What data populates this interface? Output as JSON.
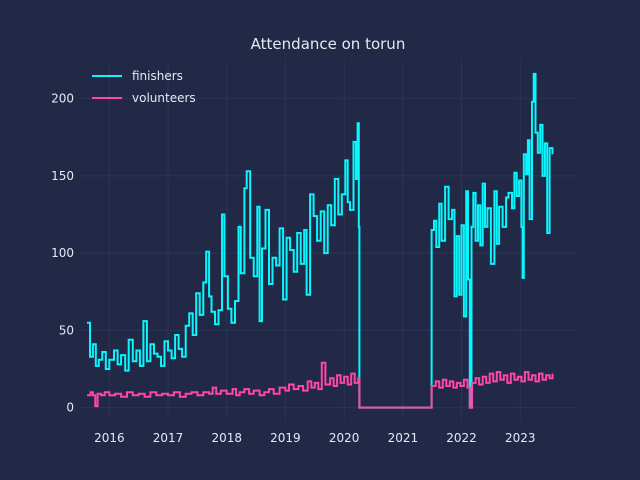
{
  "chart_data": {
    "type": "line",
    "title": "Attendance on torun",
    "xlabel": "",
    "ylabel": "",
    "x_ticks": [
      "2016",
      "2017",
      "2018",
      "2019",
      "2020",
      "2021",
      "2022",
      "2023"
    ],
    "y_ticks": [
      "0",
      "50",
      "100",
      "150",
      "200"
    ],
    "xlim": [
      2015.5,
      2023.95
    ],
    "ylim": [
      -8,
      225
    ],
    "grid": true,
    "legend_position": "top-left",
    "series": [
      {
        "name": "finishers",
        "color": "#08f7fe",
        "points": [
          [
            2015.62,
            55
          ],
          [
            2015.67,
            33
          ],
          [
            2015.72,
            41
          ],
          [
            2015.77,
            27
          ],
          [
            2015.82,
            31
          ],
          [
            2015.88,
            36
          ],
          [
            2015.94,
            25
          ],
          [
            2016.0,
            31
          ],
          [
            2016.08,
            37
          ],
          [
            2016.14,
            28
          ],
          [
            2016.2,
            34
          ],
          [
            2016.27,
            24
          ],
          [
            2016.33,
            44
          ],
          [
            2016.4,
            30
          ],
          [
            2016.46,
            37
          ],
          [
            2016.52,
            27
          ],
          [
            2016.58,
            56
          ],
          [
            2016.64,
            30
          ],
          [
            2016.7,
            41
          ],
          [
            2016.76,
            35
          ],
          [
            2016.82,
            33
          ],
          [
            2016.88,
            27
          ],
          [
            2016.94,
            43
          ],
          [
            2017.0,
            37
          ],
          [
            2017.06,
            32
          ],
          [
            2017.12,
            47
          ],
          [
            2017.18,
            38
          ],
          [
            2017.24,
            33
          ],
          [
            2017.3,
            53
          ],
          [
            2017.36,
            61
          ],
          [
            2017.42,
            47
          ],
          [
            2017.48,
            74
          ],
          [
            2017.54,
            60
          ],
          [
            2017.6,
            81
          ],
          [
            2017.65,
            101
          ],
          [
            2017.7,
            72
          ],
          [
            2017.74,
            62
          ],
          [
            2017.8,
            54
          ],
          [
            2017.86,
            63
          ],
          [
            2017.92,
            125
          ],
          [
            2017.96,
            85
          ],
          [
            2018.02,
            64
          ],
          [
            2018.08,
            55
          ],
          [
            2018.14,
            69
          ],
          [
            2018.2,
            117
          ],
          [
            2018.24,
            87
          ],
          [
            2018.3,
            142
          ],
          [
            2018.34,
            153
          ],
          [
            2018.4,
            97
          ],
          [
            2018.46,
            85
          ],
          [
            2018.52,
            130
          ],
          [
            2018.56,
            56
          ],
          [
            2018.6,
            103
          ],
          [
            2018.66,
            128
          ],
          [
            2018.72,
            80
          ],
          [
            2018.78,
            97
          ],
          [
            2018.84,
            92
          ],
          [
            2018.9,
            116
          ],
          [
            2018.96,
            70
          ],
          [
            2019.02,
            110
          ],
          [
            2019.08,
            102
          ],
          [
            2019.14,
            88
          ],
          [
            2019.2,
            113
          ],
          [
            2019.26,
            93
          ],
          [
            2019.32,
            115
          ],
          [
            2019.36,
            73
          ],
          [
            2019.42,
            138
          ],
          [
            2019.48,
            124
          ],
          [
            2019.54,
            108
          ],
          [
            2019.6,
            127
          ],
          [
            2019.66,
            100
          ],
          [
            2019.72,
            131
          ],
          [
            2019.78,
            118
          ],
          [
            2019.84,
            148
          ],
          [
            2019.9,
            125
          ],
          [
            2019.96,
            138
          ],
          [
            2020.02,
            160
          ],
          [
            2020.06,
            133
          ],
          [
            2020.1,
            128
          ],
          [
            2020.16,
            172
          ],
          [
            2020.2,
            148
          ],
          [
            2020.23,
            184
          ],
          [
            2020.25,
            117
          ],
          [
            2020.26,
            0
          ],
          [
            2021.48,
            0
          ],
          [
            2021.49,
            115
          ],
          [
            2021.53,
            121
          ],
          [
            2021.57,
            104
          ],
          [
            2021.62,
            132
          ],
          [
            2021.66,
            108
          ],
          [
            2021.72,
            143
          ],
          [
            2021.78,
            122
          ],
          [
            2021.84,
            128
          ],
          [
            2021.88,
            72
          ],
          [
            2021.92,
            111
          ],
          [
            2021.96,
            73
          ],
          [
            2022.0,
            118
          ],
          [
            2022.04,
            59
          ],
          [
            2022.08,
            140
          ],
          [
            2022.11,
            83
          ],
          [
            2022.14,
            0
          ],
          [
            2022.17,
            117
          ],
          [
            2022.2,
            139
          ],
          [
            2022.24,
            108
          ],
          [
            2022.28,
            131
          ],
          [
            2022.32,
            105
          ],
          [
            2022.36,
            145
          ],
          [
            2022.4,
            117
          ],
          [
            2022.44,
            129
          ],
          [
            2022.5,
            93
          ],
          [
            2022.56,
            140
          ],
          [
            2022.6,
            106
          ],
          [
            2022.64,
            130
          ],
          [
            2022.7,
            117
          ],
          [
            2022.76,
            136
          ],
          [
            2022.8,
            139
          ],
          [
            2022.86,
            129
          ],
          [
            2022.9,
            152
          ],
          [
            2022.94,
            137
          ],
          [
            2022.98,
            147
          ],
          [
            2023.02,
            117
          ],
          [
            2023.04,
            84
          ],
          [
            2023.06,
            164
          ],
          [
            2023.1,
            151
          ],
          [
            2023.13,
            173
          ],
          [
            2023.16,
            122
          ],
          [
            2023.2,
            198
          ],
          [
            2023.23,
            216
          ],
          [
            2023.26,
            178
          ],
          [
            2023.3,
            165
          ],
          [
            2023.34,
            183
          ],
          [
            2023.38,
            150
          ],
          [
            2023.42,
            171
          ],
          [
            2023.46,
            113
          ],
          [
            2023.5,
            168
          ],
          [
            2023.55,
            164
          ]
        ]
      },
      {
        "name": "volunteers",
        "color": "#ff46a9",
        "points": [
          [
            2015.62,
            8
          ],
          [
            2015.68,
            10
          ],
          [
            2015.72,
            8
          ],
          [
            2015.76,
            1
          ],
          [
            2015.8,
            9
          ],
          [
            2015.86,
            8
          ],
          [
            2015.92,
            10
          ],
          [
            2016.0,
            8
          ],
          [
            2016.1,
            9
          ],
          [
            2016.2,
            7
          ],
          [
            2016.3,
            10
          ],
          [
            2016.4,
            8
          ],
          [
            2016.5,
            9
          ],
          [
            2016.6,
            7
          ],
          [
            2016.7,
            10
          ],
          [
            2016.8,
            8
          ],
          [
            2016.9,
            9
          ],
          [
            2017.0,
            8
          ],
          [
            2017.1,
            10
          ],
          [
            2017.2,
            7
          ],
          [
            2017.3,
            9
          ],
          [
            2017.4,
            10
          ],
          [
            2017.5,
            8
          ],
          [
            2017.6,
            10
          ],
          [
            2017.7,
            9
          ],
          [
            2017.76,
            13
          ],
          [
            2017.82,
            9
          ],
          [
            2017.9,
            11
          ],
          [
            2018.0,
            9
          ],
          [
            2018.1,
            12
          ],
          [
            2018.16,
            8
          ],
          [
            2018.22,
            10
          ],
          [
            2018.3,
            12
          ],
          [
            2018.38,
            9
          ],
          [
            2018.46,
            11
          ],
          [
            2018.56,
            8
          ],
          [
            2018.64,
            10
          ],
          [
            2018.72,
            12
          ],
          [
            2018.8,
            9
          ],
          [
            2018.9,
            13
          ],
          [
            2019.0,
            11
          ],
          [
            2019.06,
            15
          ],
          [
            2019.14,
            12
          ],
          [
            2019.22,
            14
          ],
          [
            2019.3,
            11
          ],
          [
            2019.38,
            17
          ],
          [
            2019.44,
            13
          ],
          [
            2019.5,
            16
          ],
          [
            2019.56,
            12
          ],
          [
            2019.62,
            29
          ],
          [
            2019.68,
            15
          ],
          [
            2019.76,
            19
          ],
          [
            2019.82,
            14
          ],
          [
            2019.88,
            21
          ],
          [
            2019.94,
            16
          ],
          [
            2020.0,
            20
          ],
          [
            2020.06,
            15
          ],
          [
            2020.12,
            22
          ],
          [
            2020.18,
            16
          ],
          [
            2020.24,
            19
          ],
          [
            2020.26,
            0
          ],
          [
            2021.48,
            0
          ],
          [
            2021.49,
            14
          ],
          [
            2021.56,
            17
          ],
          [
            2021.62,
            13
          ],
          [
            2021.68,
            18
          ],
          [
            2021.74,
            14
          ],
          [
            2021.8,
            17
          ],
          [
            2021.86,
            13
          ],
          [
            2021.92,
            16
          ],
          [
            2021.98,
            14
          ],
          [
            2022.04,
            18
          ],
          [
            2022.1,
            13
          ],
          [
            2022.14,
            0
          ],
          [
            2022.18,
            16
          ],
          [
            2022.24,
            19
          ],
          [
            2022.3,
            15
          ],
          [
            2022.36,
            20
          ],
          [
            2022.42,
            16
          ],
          [
            2022.48,
            22
          ],
          [
            2022.54,
            17
          ],
          [
            2022.6,
            23
          ],
          [
            2022.66,
            18
          ],
          [
            2022.72,
            21
          ],
          [
            2022.78,
            16
          ],
          [
            2022.84,
            22
          ],
          [
            2022.9,
            18
          ],
          [
            2022.96,
            20
          ],
          [
            2023.02,
            17
          ],
          [
            2023.08,
            23
          ],
          [
            2023.14,
            18
          ],
          [
            2023.2,
            21
          ],
          [
            2023.26,
            17
          ],
          [
            2023.32,
            22
          ],
          [
            2023.38,
            18
          ],
          [
            2023.44,
            21
          ],
          [
            2023.5,
            19
          ],
          [
            2023.55,
            22
          ]
        ]
      }
    ]
  }
}
